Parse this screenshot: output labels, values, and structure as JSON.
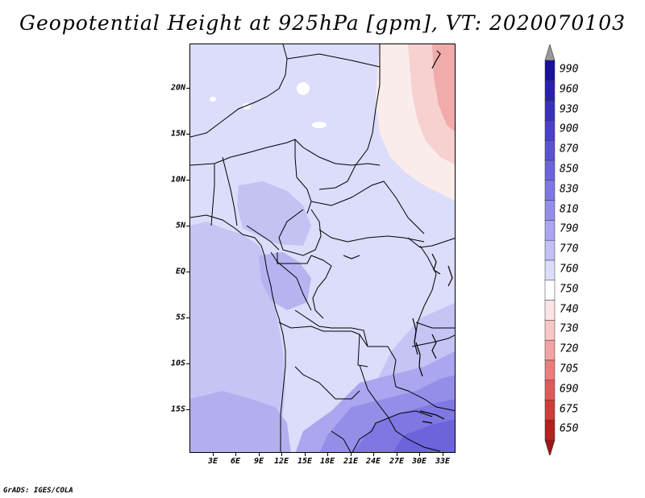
{
  "title": "Geopotential Height at 925hPa [gpm], VT: 2020070103",
  "footer": "GrADS: IGES/COLA",
  "lat_labels": [
    "20N",
    "15N",
    "10N",
    "5N",
    "EQ",
    "5S",
    "10S",
    "15S"
  ],
  "lon_labels": [
    "3E",
    "6E",
    "9E",
    "12E",
    "15E",
    "18E",
    "21E",
    "24E",
    "27E",
    "30E",
    "33E"
  ],
  "colorbar": {
    "levels": [
      "990",
      "960",
      "930",
      "900",
      "870",
      "850",
      "830",
      "810",
      "790",
      "770",
      "760",
      "750",
      "740",
      "730",
      "720",
      "705",
      "690",
      "675",
      "650"
    ],
    "colors": [
      "#1a0f9e",
      "#2a1fb0",
      "#3a30c0",
      "#4b40cb",
      "#5b52d4",
      "#6d64dc",
      "#8077e3",
      "#958ee9",
      "#aba6ef",
      "#c3c0f5",
      "#dcdcfb",
      "#ffffff",
      "#fde4e4",
      "#f8c7c7",
      "#f2a3a3",
      "#ea7d7d",
      "#e05a5a",
      "#d23b3b",
      "#b81f1f",
      "#a01414"
    ]
  }
}
